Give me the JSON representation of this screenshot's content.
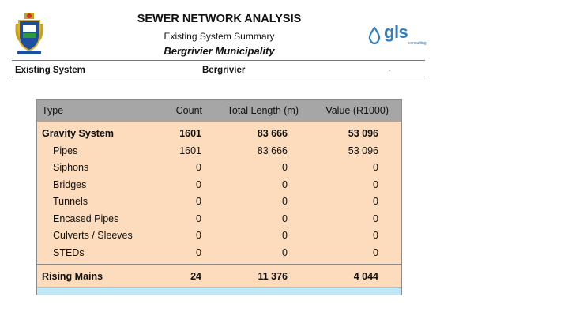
{
  "header": {
    "title": "SEWER NETWORK ANALYSIS",
    "subtitle": "Existing System Summary",
    "municipality": "Bergrivier Municipality",
    "logo_text": "gls",
    "logo_subtext": "consulting"
  },
  "info": {
    "label": "Existing System",
    "value": "Bergrivier",
    "dot": "."
  },
  "table": {
    "columns": [
      "Type",
      "Count",
      "Total Length (m)",
      "Value (R1000)"
    ],
    "rows": [
      {
        "type": "Gravity System",
        "count": "1601",
        "length": "83 666",
        "value": "53 096",
        "bold": true
      },
      {
        "type": "Pipes",
        "count": "1601",
        "length": "83 666",
        "value": "53 096"
      },
      {
        "type": "Siphons",
        "count": "0",
        "length": "0",
        "value": "0"
      },
      {
        "type": "Bridges",
        "count": "0",
        "length": "0",
        "value": "0"
      },
      {
        "type": "Tunnels",
        "count": "0",
        "length": "0",
        "value": "0"
      },
      {
        "type": "Encased Pipes",
        "count": "0",
        "length": "0",
        "value": "0"
      },
      {
        "type": "Culverts / Sleeves",
        "count": "0",
        "length": "0",
        "value": "0"
      },
      {
        "type": "STEDs",
        "count": "0",
        "length": "0",
        "value": "0"
      },
      {
        "type": "Rising Mains",
        "count": "24",
        "length": "11 376",
        "value": "4 044",
        "bold": true
      }
    ]
  },
  "colors": {
    "table_fill": "#fcdcbc",
    "header_fill": "#a6a6a6",
    "footer_fill": "#bfe8f7",
    "logo_blue": "#2f7fbf"
  }
}
